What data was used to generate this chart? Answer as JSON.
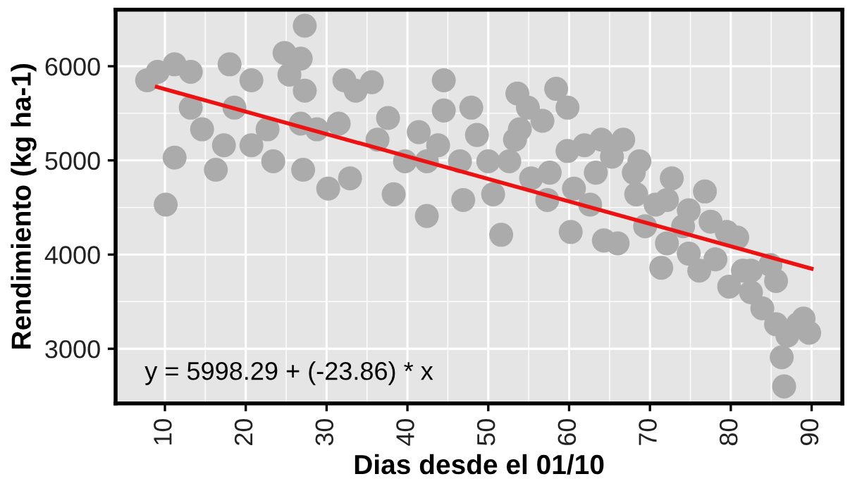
{
  "chart_data": {
    "type": "scatter",
    "xlabel": "Dias desde el 01/10",
    "ylabel": "Rendimiento (kg ha-1)",
    "annotations": [
      "y = 5998.29 + (-23.86) * x"
    ],
    "xlim": [
      3.9,
      93.8
    ],
    "ylim": [
      2420,
      6600
    ],
    "xticks": [
      10,
      20,
      30,
      40,
      50,
      60,
      70,
      80,
      90
    ],
    "yticks": [
      3000,
      4000,
      5000,
      6000
    ],
    "grid": true,
    "series": [
      {
        "color": "#ababab",
        "marker": "circle",
        "x": [
          7.8,
          9.1,
          11.2,
          13.2,
          10.1,
          11.2,
          13.2,
          14.6,
          16.3,
          18,
          18.6,
          20.7,
          17.3,
          20.7,
          22.7,
          23.4,
          24.8,
          25.4,
          27.3,
          26.8,
          27.3,
          26.8,
          27.1,
          28.8,
          30.2,
          31.5,
          32.2,
          33.6,
          32.9,
          35.6,
          36.3,
          37.6,
          38.3,
          39.7,
          41.4,
          42.4,
          42.4,
          44.5,
          44.5,
          43.8,
          46.5,
          46.9,
          47.9,
          48.6,
          50,
          50.6,
          51.6,
          52.6,
          53.6,
          53.9,
          53.3,
          54.9,
          56.7,
          55.3,
          57.3,
          58.4,
          59.8,
          57.6,
          59.8,
          60.2,
          60.6,
          61.9,
          62.6,
          64,
          63.3,
          64.3,
          66,
          65.3,
          66.7,
          68,
          68.7,
          68.3,
          69.4,
          70.7,
          72.1,
          72.7,
          71.4,
          72.1,
          74.1,
          74.8,
          74.8,
          76.1,
          76.8,
          77.5,
          78.1,
          79.5,
          79.8,
          80.8,
          81.5,
          82.5,
          82.5,
          83.9,
          84.9,
          85.6,
          85.6,
          86.3,
          86.6,
          87,
          88.3,
          89,
          89.7
        ],
        "values": [
          5850,
          5940,
          6020,
          5940,
          4530,
          5030,
          5560,
          5330,
          4900,
          6020,
          5560,
          5850,
          5160,
          5160,
          5330,
          4990,
          6140,
          5910,
          6430,
          6080,
          5740,
          5390,
          4900,
          5330,
          4700,
          5390,
          5850,
          5740,
          4810,
          5830,
          5220,
          5450,
          4640,
          4990,
          5300,
          4990,
          4410,
          5850,
          5530,
          5160,
          4990,
          4580,
          5560,
          5270,
          4990,
          4640,
          4210,
          4990,
          5710,
          5330,
          5220,
          5560,
          5420,
          4810,
          4580,
          5760,
          5560,
          4870,
          5100,
          4240,
          4700,
          5160,
          4530,
          5220,
          4870,
          4150,
          4120,
          5040,
          5220,
          4870,
          4990,
          4640,
          4300,
          4530,
          4580,
          4810,
          3860,
          4120,
          4300,
          4470,
          4010,
          3830,
          4670,
          4350,
          3950,
          4240,
          3660,
          4180,
          3830,
          3830,
          3600,
          3430,
          3890,
          3720,
          3260,
          2910,
          2600,
          3140,
          3260,
          3320,
          3170
        ]
      },
      {
        "type": "line",
        "color": "#ee1111",
        "marker": "none",
        "line_style": "solid",
        "x": [
          9,
          90
        ],
        "values": [
          5780,
          3850
        ]
      }
    ]
  }
}
